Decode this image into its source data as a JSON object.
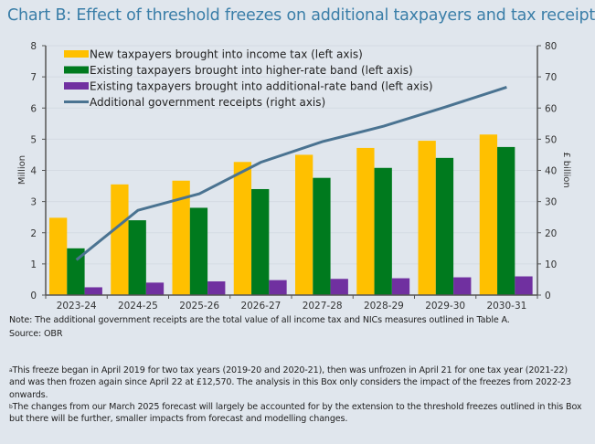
{
  "title": "Chart B: Effect of threshold freezes on additional taxpayers and tax receipts",
  "chart_data": {
    "type": "bar",
    "title": "Chart B: Effect of threshold freezes on additional taxpayers and tax receipts",
    "categories": [
      "2023-24",
      "2024-25",
      "2025-26",
      "2026-27",
      "2027-28",
      "2028-29",
      "2029-30",
      "2030-31"
    ],
    "ylabel": "Million",
    "ylim": [
      0,
      8
    ],
    "yticks": [
      "0",
      "1",
      "2",
      "3",
      "4",
      "5",
      "6",
      "7",
      "8"
    ],
    "y2label": "£ billion",
    "y2lim": [
      0,
      80
    ],
    "y2ticks": [
      "0",
      "10",
      "20",
      "30",
      "40",
      "50",
      "60",
      "70",
      "80"
    ],
    "legend": "top-left",
    "grid": true,
    "series": [
      {
        "name": "New taxpayers brought into income tax (left axis)",
        "type": "bar",
        "axis": "left",
        "color": "#ffc000",
        "values": [
          2.48,
          3.55,
          3.67,
          4.27,
          4.5,
          4.72,
          4.95,
          5.15
        ]
      },
      {
        "name": "Existing taxpayers brought into higher-rate band (left axis)",
        "type": "bar",
        "axis": "left",
        "color": "#007a1e",
        "values": [
          1.5,
          2.4,
          2.8,
          3.4,
          3.76,
          4.08,
          4.4,
          4.75
        ]
      },
      {
        "name": "Existing taxpayers brought into additional-rate band (left axis)",
        "type": "bar",
        "axis": "left",
        "color": "#7030a0",
        "values": [
          0.25,
          0.4,
          0.44,
          0.48,
          0.52,
          0.54,
          0.57,
          0.6
        ]
      },
      {
        "name": "Additional government receipts (right axis)",
        "type": "line",
        "axis": "right",
        "color": "#4a7391",
        "values": [
          11.3,
          27.2,
          32.5,
          42.6,
          49.2,
          54.2,
          60.3,
          66.7
        ]
      }
    ]
  },
  "note": "Note: The additional government receipts are the total value of all income tax and NICs measures outlined in Table A.",
  "source": "Source: OBR",
  "footnotes": [
    {
      "marker": "a",
      "text": "This freeze began in April 2019 for two tax years (2019-20 and 2020-21), then was unfrozen in April 21 for one tax year (2021-22) and was then frozen again since April 22 at £12,570. The analysis in this Box only considers the impact of the freezes from 2022-23 onwards."
    },
    {
      "marker": "b",
      "text": "The changes from our March 2025 forecast will largely be accounted for by the extension to the threshold freezes outlined in this Box but there will be further, smaller impacts from forecast and modelling changes."
    }
  ]
}
